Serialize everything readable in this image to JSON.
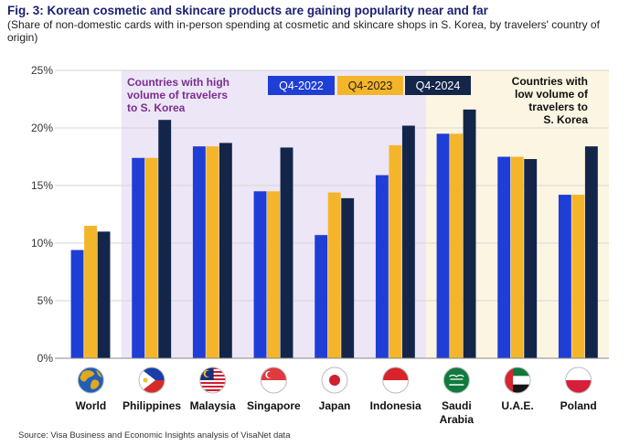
{
  "header": {
    "title": "Fig. 3: Korean cosmetic and skincare products are gaining popularity near and far",
    "subtitle": "(Share of non-domestic cards with in-person spending at cosmetic and skincare shops in S. Korea, by travelers' country of origin)"
  },
  "footer": {
    "source": "Source: Visa Business and Economic Insights analysis of VisaNet data"
  },
  "chart_data": {
    "type": "bar",
    "title": "Fig. 3: Korean cosmetic and skincare products are gaining popularity near and far",
    "subtitle": "(Share of non-domestic cards with in-person spending at cosmetic and skincare shops in S. Korea, by travelers' country of origin)",
    "categories": [
      "World",
      "Philippines",
      "Malaysia",
      "Singapore",
      "Japan",
      "Indonesia",
      "Saudi Arabia",
      "U.A.E.",
      "Poland"
    ],
    "series": [
      {
        "name": "Q4-2022",
        "color": "#1f3ed6",
        "values": [
          9.4,
          17.4,
          18.4,
          14.5,
          10.7,
          15.9,
          19.5,
          17.5,
          14.2
        ]
      },
      {
        "name": "Q4-2023",
        "color": "#f5b52a",
        "values": [
          11.5,
          17.4,
          18.4,
          14.5,
          14.4,
          18.5,
          19.5,
          17.5,
          14.2
        ]
      },
      {
        "name": "Q4-2024",
        "color": "#13264a",
        "values": [
          11.0,
          20.7,
          18.7,
          18.3,
          13.9,
          20.2,
          21.6,
          17.3,
          18.4
        ]
      }
    ],
    "y_ticks": [
      "0%",
      "5%",
      "10%",
      "15%",
      "20%",
      "25%"
    ],
    "ylim": [
      0,
      25
    ],
    "grid": true,
    "legend_position": "top-center",
    "annotations": [
      {
        "text": "Countries with high volume of travelers to S. Korea",
        "color": "#7a2e8e",
        "background": "#ede6f6",
        "categories": [
          "Philippines",
          "Malaysia",
          "Singapore",
          "Japan",
          "Indonesia"
        ]
      },
      {
        "text": "Countries with low volume of travelers to S. Korea",
        "color": "#111111",
        "background": "#fcf5e2",
        "categories": [
          "Saudi Arabia",
          "U.A.E.",
          "Poland"
        ]
      }
    ]
  }
}
